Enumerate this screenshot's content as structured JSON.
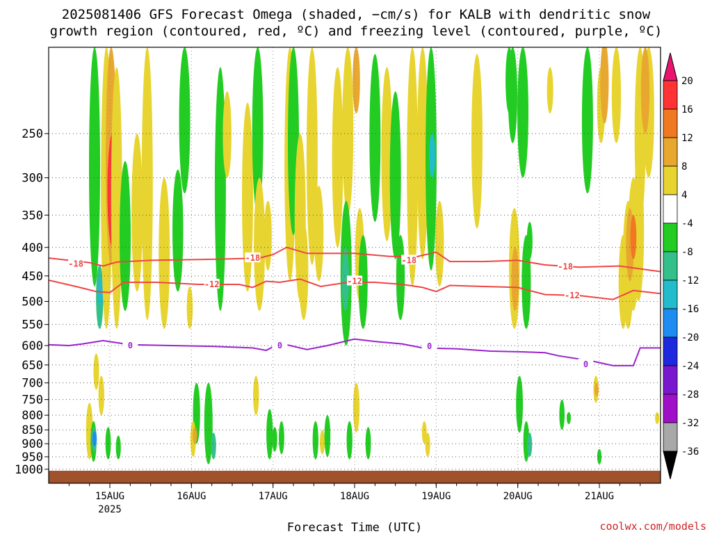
{
  "chart_data": {
    "type": "heatmap",
    "title_lines": [
      "2025081406 GFS Forecast Omega (shaded, −cm/s) for KALB with dendritic snow",
      "growth region (contoured, red, ºC) and freezing level (contoured, purple, ºC)"
    ],
    "xlabel": "Forecast Time (UTC)",
    "credit": "coolwx.com/models",
    "x_ticks": [
      {
        "label": "15AUG",
        "sub": "2025",
        "t": 18
      },
      {
        "label": "16AUG",
        "sub": "",
        "t": 42
      },
      {
        "label": "17AUG",
        "sub": "",
        "t": 66
      },
      {
        "label": "18AUG",
        "sub": "",
        "t": 90
      },
      {
        "label": "19AUG",
        "sub": "",
        "t": 114
      },
      {
        "label": "20AUG",
        "sub": "",
        "t": 138
      },
      {
        "label": "21AUG",
        "sub": "",
        "t": 162
      }
    ],
    "xlim": [
      0,
      180
    ],
    "y_ticks": [
      250,
      300,
      350,
      400,
      450,
      500,
      550,
      600,
      650,
      700,
      750,
      800,
      850,
      900,
      950,
      1000
    ],
    "ylim": [
      1015,
      175
    ],
    "y_scale": "log-pressure (hPa)",
    "colorbar": {
      "ticks": [
        "20",
        "16",
        "12",
        "8",
        "4",
        "-4",
        "-8",
        "-12",
        "-16",
        "-20",
        "-24",
        "-28",
        "-32",
        "-36"
      ],
      "colors": [
        "#e8146e",
        "#ff3333",
        "#f07820",
        "#e8a830",
        "#e8d430",
        "#ffffff",
        "#22cc22",
        "#33c08a",
        "#22bccc",
        "#1e8cf0",
        "#1e28dc",
        "#7a18d0",
        "#a010c8",
        "#a8a8a8",
        "#000000"
      ]
    },
    "shading": [
      {
        "t": 13.5,
        "p1": 175,
        "p2": 470,
        "v": -8
      },
      {
        "t": 15.0,
        "p1": 430,
        "p2": 560,
        "v": -12
      },
      {
        "t": 15.3,
        "p1": 450,
        "p2": 510,
        "v": -16
      },
      {
        "t": 17.0,
        "p1": 175,
        "p2": 560,
        "v": 4
      },
      {
        "t": 18.4,
        "p1": 175,
        "p2": 430,
        "v": 8
      },
      {
        "t": 18.8,
        "p1": 250,
        "p2": 400,
        "v": 16
      },
      {
        "t": 20.0,
        "p1": 190,
        "p2": 560,
        "v": 4
      },
      {
        "t": 22.5,
        "p1": 280,
        "p2": 520,
        "v": -8
      },
      {
        "t": 14.0,
        "p1": 620,
        "p2": 720,
        "v": 4
      },
      {
        "t": 15.5,
        "p1": 680,
        "p2": 800,
        "v": 4
      },
      {
        "t": 12.0,
        "p1": 760,
        "p2": 960,
        "v": 4
      },
      {
        "t": 13.2,
        "p1": 820,
        "p2": 970,
        "v": -8
      },
      {
        "t": 13.4,
        "p1": 840,
        "p2": 930,
        "v": -12
      },
      {
        "t": 13.5,
        "p1": 855,
        "p2": 910,
        "v": -20
      },
      {
        "t": 17.5,
        "p1": 840,
        "p2": 960,
        "v": -8
      },
      {
        "t": 20.5,
        "p1": 870,
        "p2": 960,
        "v": -8
      },
      {
        "t": 26.0,
        "p1": 250,
        "p2": 480,
        "v": 4
      },
      {
        "t": 29.0,
        "p1": 175,
        "p2": 540,
        "v": 4
      },
      {
        "t": 34.0,
        "p1": 300,
        "p2": 560,
        "v": 4
      },
      {
        "t": 38.0,
        "p1": 290,
        "p2": 480,
        "v": -8
      },
      {
        "t": 40.0,
        "p1": 175,
        "p2": 320,
        "v": -8
      },
      {
        "t": 41.5,
        "p1": 470,
        "p2": 560,
        "v": 4
      },
      {
        "t": 43.5,
        "p1": 700,
        "p2": 900,
        "v": -8
      },
      {
        "t": 42.5,
        "p1": 820,
        "p2": 950,
        "v": 4
      },
      {
        "t": 43.0,
        "p1": 840,
        "p2": 900,
        "v": 8
      },
      {
        "t": 47.0,
        "p1": 700,
        "p2": 980,
        "v": -8
      },
      {
        "t": 48.5,
        "p1": 860,
        "p2": 960,
        "v": -12
      },
      {
        "t": 50.5,
        "p1": 190,
        "p2": 520,
        "v": -8
      },
      {
        "t": 52.5,
        "p1": 210,
        "p2": 300,
        "v": 4
      },
      {
        "t": 58.5,
        "p1": 220,
        "p2": 480,
        "v": 4
      },
      {
        "t": 61.5,
        "p1": 175,
        "p2": 350,
        "v": -8
      },
      {
        "t": 62.0,
        "p1": 300,
        "p2": 520,
        "v": 4
      },
      {
        "t": 64.5,
        "p1": 330,
        "p2": 440,
        "v": 4
      },
      {
        "t": 61.0,
        "p1": 680,
        "p2": 800,
        "v": 4
      },
      {
        "t": 65.0,
        "p1": 780,
        "p2": 960,
        "v": -8
      },
      {
        "t": 66.5,
        "p1": 840,
        "p2": 930,
        "v": -8
      },
      {
        "t": 68.5,
        "p1": 820,
        "p2": 940,
        "v": -8
      },
      {
        "t": 71.0,
        "p1": 175,
        "p2": 460,
        "v": 4
      },
      {
        "t": 72.0,
        "p1": 175,
        "p2": 380,
        "v": -8
      },
      {
        "t": 74.0,
        "p1": 250,
        "p2": 500,
        "v": 4
      },
      {
        "t": 75.0,
        "p1": 360,
        "p2": 540,
        "v": 4
      },
      {
        "t": 77.5,
        "p1": 175,
        "p2": 430,
        "v": 4
      },
      {
        "t": 79.5,
        "p1": 310,
        "p2": 460,
        "v": 4
      },
      {
        "t": 78.5,
        "p1": 820,
        "p2": 960,
        "v": -8
      },
      {
        "t": 80.5,
        "p1": 850,
        "p2": 940,
        "v": 4
      },
      {
        "t": 82.0,
        "p1": 800,
        "p2": 950,
        "v": -8
      },
      {
        "t": 85.0,
        "p1": 190,
        "p2": 400,
        "v": 4
      },
      {
        "t": 88.0,
        "p1": 175,
        "p2": 350,
        "v": 4
      },
      {
        "t": 87.5,
        "p1": 330,
        "p2": 600,
        "v": -8
      },
      {
        "t": 87.3,
        "p1": 400,
        "p2": 520,
        "v": -12
      },
      {
        "t": 90.5,
        "p1": 175,
        "p2": 230,
        "v": 8
      },
      {
        "t": 91.5,
        "p1": 340,
        "p2": 500,
        "v": 4
      },
      {
        "t": 92.5,
        "p1": 380,
        "p2": 560,
        "v": -8
      },
      {
        "t": 90.5,
        "p1": 700,
        "p2": 860,
        "v": 4
      },
      {
        "t": 88.5,
        "p1": 820,
        "p2": 960,
        "v": -8
      },
      {
        "t": 94.0,
        "p1": 840,
        "p2": 960,
        "v": -8
      },
      {
        "t": 96.0,
        "p1": 180,
        "p2": 360,
        "v": -8
      },
      {
        "t": 99.5,
        "p1": 190,
        "p2": 390,
        "v": 4
      },
      {
        "t": 102.0,
        "p1": 210,
        "p2": 420,
        "v": -8
      },
      {
        "t": 103.5,
        "p1": 380,
        "p2": 540,
        "v": -8
      },
      {
        "t": 107.0,
        "p1": 175,
        "p2": 470,
        "v": 4
      },
      {
        "t": 110.0,
        "p1": 175,
        "p2": 420,
        "v": 4
      },
      {
        "t": 112.5,
        "p1": 175,
        "p2": 440,
        "v": -8
      },
      {
        "t": 112.8,
        "p1": 250,
        "p2": 300,
        "v": -16
      },
      {
        "t": 115.0,
        "p1": 330,
        "p2": 470,
        "v": 4
      },
      {
        "t": 111.5,
        "p1": 860,
        "p2": 950,
        "v": 4
      },
      {
        "t": 110.5,
        "p1": 820,
        "p2": 900,
        "v": 4
      },
      {
        "t": 126.0,
        "p1": 180,
        "p2": 370,
        "v": 4
      },
      {
        "t": 135.5,
        "p1": 175,
        "p2": 230,
        "v": -8
      },
      {
        "t": 136.5,
        "p1": 175,
        "p2": 260,
        "v": -8
      },
      {
        "t": 137.0,
        "p1": 340,
        "p2": 560,
        "v": 4
      },
      {
        "t": 137.2,
        "p1": 400,
        "p2": 520,
        "v": 8
      },
      {
        "t": 139.5,
        "p1": 175,
        "p2": 300,
        "v": -8
      },
      {
        "t": 140.5,
        "p1": 380,
        "p2": 560,
        "v": -8
      },
      {
        "t": 141.5,
        "p1": 360,
        "p2": 420,
        "v": -8
      },
      {
        "t": 138.5,
        "p1": 680,
        "p2": 860,
        "v": -8
      },
      {
        "t": 140.5,
        "p1": 820,
        "p2": 970,
        "v": -8
      },
      {
        "t": 141.5,
        "p1": 860,
        "p2": 950,
        "v": -12
      },
      {
        "t": 147.5,
        "p1": 190,
        "p2": 230,
        "v": 4
      },
      {
        "t": 151.0,
        "p1": 750,
        "p2": 850,
        "v": -8
      },
      {
        "t": 153.0,
        "p1": 790,
        "p2": 830,
        "v": -8
      },
      {
        "t": 158.5,
        "p1": 175,
        "p2": 320,
        "v": -8
      },
      {
        "t": 161.0,
        "p1": 680,
        "p2": 760,
        "v": 4
      },
      {
        "t": 161.2,
        "p1": 700,
        "p2": 740,
        "v": 8
      },
      {
        "t": 162.5,
        "p1": 190,
        "p2": 260,
        "v": 4
      },
      {
        "t": 163.5,
        "p1": 170,
        "p2": 240,
        "v": 8
      },
      {
        "t": 162.0,
        "p1": 920,
        "p2": 980,
        "v": -8
      },
      {
        "t": 167.0,
        "p1": 175,
        "p2": 260,
        "v": 4
      },
      {
        "t": 169.0,
        "p1": 380,
        "p2": 560,
        "v": 4
      },
      {
        "t": 170.5,
        "p1": 330,
        "p2": 560,
        "v": 4
      },
      {
        "t": 172.0,
        "p1": 300,
        "p2": 520,
        "v": 4
      },
      {
        "t": 173.5,
        "p1": 280,
        "p2": 500,
        "v": 4
      },
      {
        "t": 171.0,
        "p1": 340,
        "p2": 460,
        "v": 8
      },
      {
        "t": 172.0,
        "p1": 350,
        "p2": 420,
        "v": 12
      },
      {
        "t": 174.0,
        "p1": 175,
        "p2": 360,
        "v": 4
      },
      {
        "t": 176.5,
        "p1": 175,
        "p2": 300,
        "v": 4
      },
      {
        "t": 175.5,
        "p1": 175,
        "p2": 250,
        "v": 8
      },
      {
        "t": 179.0,
        "p1": 790,
        "p2": 830,
        "v": 4
      }
    ],
    "contours": [
      {
        "name": "-18",
        "color": "#ee4444",
        "labels": [
          {
            "t": 8,
            "p": 428
          },
          {
            "t": 60,
            "p": 418
          },
          {
            "t": 106,
            "p": 422
          },
          {
            "t": 152,
            "p": 433
          }
        ],
        "points": [
          [
            0,
            418
          ],
          [
            6,
            422
          ],
          [
            12,
            426
          ],
          [
            16,
            432
          ],
          [
            20,
            425
          ],
          [
            30,
            422
          ],
          [
            50,
            420
          ],
          [
            62,
            418
          ],
          [
            66,
            412
          ],
          [
            70,
            400
          ],
          [
            76,
            410
          ],
          [
            90,
            410
          ],
          [
            100,
            415
          ],
          [
            108,
            416
          ],
          [
            114,
            408
          ],
          [
            118,
            424
          ],
          [
            128,
            424
          ],
          [
            138,
            422
          ],
          [
            146,
            430
          ],
          [
            156,
            434
          ],
          [
            168,
            432
          ],
          [
            180,
            442
          ]
        ]
      },
      {
        "name": "-12",
        "color": "#ee4444",
        "labels": [
          {
            "t": 48,
            "p": 466
          },
          {
            "t": 90,
            "p": 460
          },
          {
            "t": 154,
            "p": 488
          }
        ],
        "points": [
          [
            0,
            458
          ],
          [
            8,
            470
          ],
          [
            14,
            480
          ],
          [
            18,
            482
          ],
          [
            22,
            462
          ],
          [
            32,
            462
          ],
          [
            44,
            466
          ],
          [
            56,
            466
          ],
          [
            60,
            472
          ],
          [
            64,
            460
          ],
          [
            68,
            462
          ],
          [
            74,
            456
          ],
          [
            80,
            470
          ],
          [
            88,
            462
          ],
          [
            96,
            462
          ],
          [
            104,
            466
          ],
          [
            110,
            472
          ],
          [
            114,
            480
          ],
          [
            118,
            468
          ],
          [
            128,
            470
          ],
          [
            138,
            472
          ],
          [
            146,
            486
          ],
          [
            156,
            488
          ],
          [
            166,
            496
          ],
          [
            172,
            478
          ],
          [
            180,
            484
          ]
        ]
      },
      {
        "name": "0",
        "color": "#9922cc",
        "labels": [
          {
            "t": 24,
            "p": 600
          },
          {
            "t": 68,
            "p": 600
          },
          {
            "t": 112,
            "p": 602
          },
          {
            "t": 158,
            "p": 648
          }
        ],
        "points": [
          [
            0,
            598
          ],
          [
            6,
            600
          ],
          [
            10,
            596
          ],
          [
            16,
            588
          ],
          [
            24,
            598
          ],
          [
            36,
            600
          ],
          [
            48,
            602
          ],
          [
            60,
            606
          ],
          [
            64,
            612
          ],
          [
            68,
            594
          ],
          [
            76,
            610
          ],
          [
            82,
            600
          ],
          [
            90,
            584
          ],
          [
            96,
            590
          ],
          [
            104,
            596
          ],
          [
            110,
            606
          ],
          [
            120,
            608
          ],
          [
            130,
            614
          ],
          [
            140,
            616
          ],
          [
            146,
            618
          ],
          [
            150,
            626
          ],
          [
            160,
            640
          ],
          [
            166,
            652
          ],
          [
            172,
            652
          ],
          [
            174,
            606
          ],
          [
            180,
            606
          ]
        ]
      }
    ]
  }
}
